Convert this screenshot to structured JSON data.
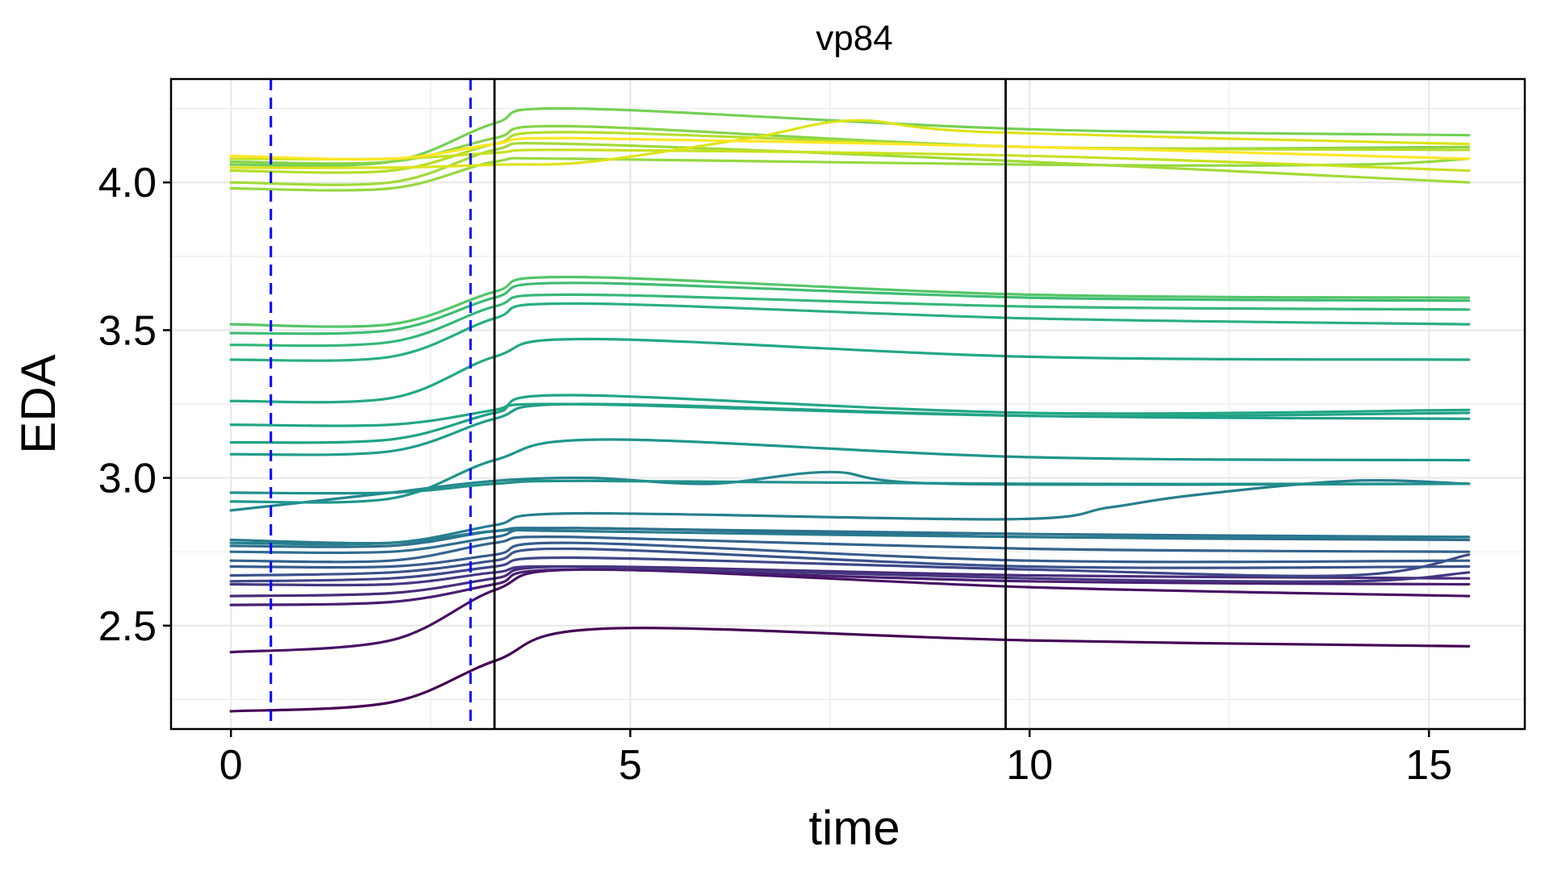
{
  "chart_data": {
    "type": "line",
    "title": "vp84",
    "xlabel": "time",
    "ylabel": "EDA",
    "xlim": [
      -0.75,
      16.2
    ],
    "ylim": [
      2.15,
      4.35
    ],
    "x_ticks": [
      0,
      5,
      10,
      15
    ],
    "x_tick_labels": [
      "0",
      "5",
      "10",
      "15"
    ],
    "y_ticks": [
      2.5,
      3.0,
      3.5,
      4.0
    ],
    "y_tick_labels": [
      "2.5",
      "3.0",
      "3.5",
      "4.0"
    ],
    "grid": true,
    "legend": "none",
    "color_scale": "viridis (dark purple to yellow by trace level)",
    "reference_lines": [
      {
        "x": 0.5,
        "style": "dashed",
        "color": "#0000ff"
      },
      {
        "x": 3.0,
        "style": "dashed",
        "color": "#0000ff"
      },
      {
        "x": 3.3,
        "style": "solid",
        "color": "#000000"
      },
      {
        "x": 9.7,
        "style": "solid",
        "color": "#000000"
      }
    ],
    "series": [
      {
        "color": "#440154",
        "x": [
          0,
          2,
          3.3,
          4.7,
          10,
          15.5
        ],
        "y": [
          2.21,
          2.24,
          2.38,
          2.49,
          2.45,
          2.43
        ]
      },
      {
        "color": "#471063",
        "x": [
          0,
          2,
          3.3,
          4.5,
          10,
          15.5
        ],
        "y": [
          2.41,
          2.45,
          2.62,
          2.69,
          2.63,
          2.6
        ]
      },
      {
        "color": "#481d6f",
        "x": [
          0,
          2,
          3.3,
          4.3,
          10,
          15.5
        ],
        "y": [
          2.57,
          2.58,
          2.64,
          2.69,
          2.65,
          2.64
        ]
      },
      {
        "color": "#472c7a",
        "x": [
          0,
          2,
          3.3,
          4.3,
          10,
          15.5
        ],
        "y": [
          2.6,
          2.61,
          2.66,
          2.7,
          2.67,
          2.66
        ]
      },
      {
        "color": "#453781",
        "x": [
          0,
          2,
          3.3,
          4.3,
          10,
          14,
          15.5
        ],
        "y": [
          2.64,
          2.64,
          2.68,
          2.7,
          2.66,
          2.65,
          2.68
        ]
      },
      {
        "color": "#3f4788",
        "x": [
          0,
          2,
          3.3,
          4.3,
          10,
          14,
          15.5
        ],
        "y": [
          2.65,
          2.66,
          2.7,
          2.73,
          2.69,
          2.67,
          2.74
        ]
      },
      {
        "color": "#3b528b",
        "x": [
          0,
          2,
          3.3,
          4.3,
          10,
          15.5
        ],
        "y": [
          2.67,
          2.68,
          2.72,
          2.76,
          2.7,
          2.7
        ]
      },
      {
        "color": "#365c8d",
        "x": [
          0,
          2,
          3.3,
          4.3,
          10,
          15.5
        ],
        "y": [
          2.7,
          2.7,
          2.74,
          2.78,
          2.72,
          2.72
        ]
      },
      {
        "color": "#33638d",
        "x": [
          0,
          2,
          3.3,
          4.3,
          10,
          15.5
        ],
        "y": [
          2.72,
          2.72,
          2.78,
          2.8,
          2.76,
          2.75
        ]
      },
      {
        "color": "#2e6e8e",
        "x": [
          0,
          2,
          3.3,
          4.3,
          10,
          15.5
        ],
        "y": [
          2.75,
          2.75,
          2.8,
          2.83,
          2.8,
          2.79
        ]
      },
      {
        "color": "#2c728e",
        "x": [
          0,
          2,
          3.3,
          4.3,
          10,
          15.5
        ],
        "y": [
          2.77,
          2.77,
          2.82,
          2.83,
          2.81,
          2.8
        ]
      },
      {
        "color": "#297b8e",
        "x": [
          0,
          2,
          3.3,
          4.3,
          10,
          15.5
        ],
        "y": [
          2.79,
          2.78,
          2.82,
          2.82,
          2.8,
          2.8
        ]
      },
      {
        "color": "#277f8e",
        "x": [
          0,
          2,
          3.3,
          4.3,
          9.7,
          11,
          12,
          14,
          15.5
        ],
        "y": [
          2.78,
          2.78,
          2.84,
          2.88,
          2.86,
          2.9,
          2.94,
          2.99,
          2.98
        ]
      },
      {
        "color": "#24868e",
        "x": [
          0,
          2,
          3.3,
          4.5,
          6,
          7.5,
          9,
          15.5
        ],
        "y": [
          2.89,
          2.95,
          2.99,
          3.0,
          2.98,
          3.02,
          2.98,
          2.98
        ]
      },
      {
        "color": "#21918c",
        "x": [
          0,
          2,
          3.3,
          4.5,
          10,
          15.5
        ],
        "y": [
          2.95,
          2.95,
          2.98,
          2.99,
          2.98,
          2.98
        ]
      },
      {
        "color": "#1f968b",
        "x": [
          0,
          2,
          3.3,
          4.7,
          10,
          15.5
        ],
        "y": [
          2.92,
          2.93,
          3.06,
          3.13,
          3.07,
          3.06
        ]
      },
      {
        "color": "#1f9e89",
        "x": [
          0,
          2,
          3.3,
          4.4,
          10,
          15.5
        ],
        "y": [
          3.08,
          3.09,
          3.2,
          3.25,
          3.21,
          3.2
        ]
      },
      {
        "color": "#20a386",
        "x": [
          0,
          2,
          3.3,
          4.2,
          10,
          15.5
        ],
        "y": [
          3.12,
          3.13,
          3.22,
          3.25,
          3.21,
          3.22
        ]
      },
      {
        "color": "#21a685",
        "x": [
          0,
          2,
          3.3,
          4.3,
          10,
          15.5
        ],
        "y": [
          3.18,
          3.18,
          3.23,
          3.28,
          3.22,
          3.23
        ]
      },
      {
        "color": "#22a884",
        "x": [
          0,
          2,
          3.3,
          4.5,
          10,
          15.5
        ],
        "y": [
          3.26,
          3.27,
          3.41,
          3.47,
          3.41,
          3.4
        ]
      },
      {
        "color": "#29af7f",
        "x": [
          0,
          2,
          3.3,
          4.3,
          10,
          15.5
        ],
        "y": [
          3.4,
          3.41,
          3.54,
          3.59,
          3.54,
          3.52
        ]
      },
      {
        "color": "#35b779",
        "x": [
          0,
          2,
          3.3,
          4.3,
          10,
          15.5
        ],
        "y": [
          3.45,
          3.46,
          3.58,
          3.62,
          3.58,
          3.57
        ]
      },
      {
        "color": "#3ebc73",
        "x": [
          0,
          2,
          3.3,
          4.3,
          10,
          15.5
        ],
        "y": [
          3.49,
          3.5,
          3.61,
          3.66,
          3.61,
          3.6
        ]
      },
      {
        "color": "#54c568",
        "x": [
          0,
          2,
          3.3,
          4.3,
          10,
          15.5
        ],
        "y": [
          3.52,
          3.52,
          3.63,
          3.68,
          3.62,
          3.61
        ]
      },
      {
        "color": "#73d055",
        "x": [
          0,
          2,
          3.3,
          4.3,
          10,
          15.5
        ],
        "y": [
          4.06,
          4.07,
          4.2,
          4.25,
          4.18,
          4.16
        ]
      },
      {
        "color": "#85d44a",
        "x": [
          0,
          2,
          3.3,
          4.3,
          10,
          15.5
        ],
        "y": [
          4.07,
          4.07,
          4.15,
          4.19,
          4.12,
          4.12
        ]
      },
      {
        "color": "#95d840",
        "x": [
          0,
          2,
          3.3,
          4.3,
          10,
          14,
          15.5
        ],
        "y": [
          3.98,
          3.98,
          4.07,
          4.08,
          4.06,
          4.06,
          4.08
        ]
      },
      {
        "color": "#a2da37",
        "x": [
          0,
          2,
          3.3,
          4.3,
          10,
          15.5
        ],
        "y": [
          4.0,
          4.0,
          4.11,
          4.13,
          4.07,
          4.0
        ]
      },
      {
        "color": "#b5de2b",
        "x": [
          0,
          2,
          3.3,
          4.3,
          10,
          15.5
        ],
        "y": [
          4.04,
          4.04,
          4.13,
          4.17,
          4.12,
          4.11
        ]
      },
      {
        "color": "#c8e020",
        "x": [
          0,
          2,
          3.3,
          4.3,
          10,
          15.5
        ],
        "y": [
          4.08,
          4.08,
          4.1,
          4.11,
          4.09,
          4.04
        ]
      },
      {
        "color": "#dde318",
        "x": [
          0,
          2,
          3.3,
          4.5,
          6.5,
          7.8,
          9.5,
          15.5
        ],
        "y": [
          4.05,
          4.05,
          4.06,
          4.07,
          4.15,
          4.21,
          4.17,
          4.13
        ]
      },
      {
        "color": "#fde725",
        "x": [
          0,
          2,
          3.3,
          4.3,
          10,
          15.5
        ],
        "y": [
          4.09,
          4.08,
          4.13,
          4.15,
          4.12,
          4.08
        ]
      }
    ]
  }
}
